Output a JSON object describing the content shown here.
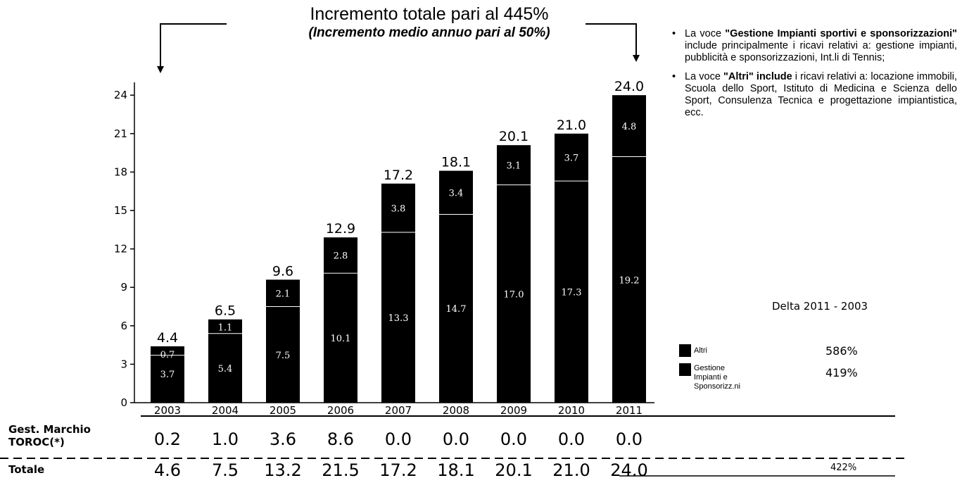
{
  "headline": {
    "line1": "Incremento totale pari al 445%",
    "line2": "(Incremento medio annuo pari al 50%)"
  },
  "chart_data": {
    "type": "bar",
    "stacked": true,
    "categories": [
      "2003",
      "2004",
      "2005",
      "2006",
      "2007",
      "2008",
      "2009",
      "2010",
      "2011"
    ],
    "series": [
      {
        "name": "Gestione Impianti e Sponsorizz.ni",
        "values": [
          3.7,
          5.4,
          7.5,
          10.1,
          13.3,
          14.7,
          17.0,
          17.3,
          19.2
        ]
      },
      {
        "name": "Altri",
        "values": [
          0.7,
          1.1,
          2.1,
          2.8,
          3.8,
          3.4,
          3.1,
          3.7,
          4.8
        ]
      }
    ],
    "totals": [
      "4.4",
      "6.5",
      "9.6",
      "12.9",
      "17.2",
      "18.1",
      "20.1",
      "21.0",
      "24.0"
    ],
    "segment_labels": {
      "bottom": [
        "3.7",
        "5.4",
        "7.5",
        "10.1",
        "13.3",
        "14.7",
        "17.0",
        "17.3",
        "19.2"
      ],
      "top": [
        "0.7",
        "1.1",
        "2.1",
        "2.8",
        "3.8",
        "3.4",
        "3.1",
        "3.7",
        "4.8"
      ]
    },
    "yticks": [
      "0",
      "3",
      "6",
      "9",
      "12",
      "15",
      "18",
      "21",
      "24"
    ],
    "ylim": [
      0,
      25
    ],
    "bar_color": "#000000",
    "label_color_inside": "#ffffff"
  },
  "table": {
    "rows": [
      {
        "label_line1": "Gest. Marchio",
        "label_line2": "TOROC(*)",
        "values": [
          "0.2",
          "1.0",
          "3.6",
          "8.6",
          "0.0",
          "0.0",
          "0.0",
          "0.0",
          "0.0"
        ]
      },
      {
        "label_line1": "Totale",
        "label_line2": "",
        "values": [
          "4.6",
          "7.5",
          "13.2",
          "21.5",
          "17.2",
          "18.1",
          "20.1",
          "21.0",
          "24.0"
        ]
      }
    ],
    "total_pct": "422%"
  },
  "notes": [
    {
      "bullet": "•",
      "pre": "La voce ",
      "bold": "\"Gestione Impianti sportivi e sponsorizzazioni\"",
      "post": " include principalmente i ricavi relativi a: gestione impianti, pubblicità e sponsorizzazioni, Int.li di Tennis;"
    },
    {
      "bullet": "•",
      "pre": "La voce ",
      "bold": "\"Altri\" include",
      "post": " i ricavi relativi a: locazione immobili, Scuola dello Sport, Istituto di Medicina e Scienza dello Sport, Consulenza Tecnica e progettazione impiantistica, ecc."
    }
  ],
  "delta": {
    "title": "Delta 2011 - 2003",
    "items": [
      {
        "label": "Altri",
        "label2": "",
        "value": "586%"
      },
      {
        "label": "Gestione Impianti e",
        "label2": "Sponsorizz.ni",
        "value": "419%"
      }
    ]
  }
}
